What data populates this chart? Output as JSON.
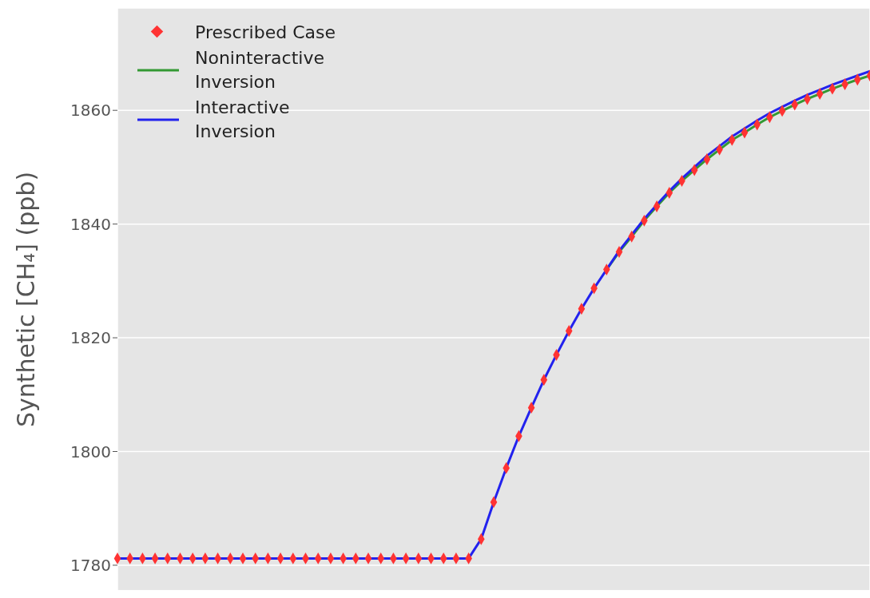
{
  "chart_data": {
    "type": "line",
    "ylabel": "Synthetic [CH₄] (ppb)",
    "categories": [
      null,
      null,
      null,
      null,
      null,
      null,
      null,
      null,
      null,
      null,
      null,
      null,
      null,
      null,
      null,
      null,
      null,
      null,
      null,
      null,
      null,
      null,
      null,
      null,
      null,
      null,
      null,
      null,
      null,
      null,
      null,
      null,
      null,
      null,
      null,
      null,
      null,
      null,
      null,
      null,
      null,
      null,
      null,
      null,
      null,
      null,
      null,
      null,
      null,
      null,
      null,
      null,
      null,
      null,
      null,
      null,
      null,
      null,
      null,
      null,
      null
    ],
    "series": [
      {
        "name": "Prescribed Case",
        "type": "scatter",
        "marker": "diamond",
        "color": "#ff3333",
        "values": [
          1781.2,
          1781.2,
          1781.2,
          1781.2,
          1781.2,
          1781.2,
          1781.2,
          1781.2,
          1781.2,
          1781.2,
          1781.2,
          1781.2,
          1781.2,
          1781.2,
          1781.2,
          1781.2,
          1781.2,
          1781.2,
          1781.2,
          1781.2,
          1781.2,
          1781.2,
          1781.2,
          1781.2,
          1781.2,
          1781.2,
          1781.2,
          1781.2,
          1781.2,
          1784.6,
          1791.1,
          1797.1,
          1802.7,
          1807.7,
          1812.6,
          1817.0,
          1821.2,
          1825.1,
          1828.7,
          1832.0,
          1835.1,
          1837.8,
          1840.6,
          1843.1,
          1845.5,
          1847.6,
          1849.5,
          1851.4,
          1853.1,
          1854.8,
          1856.1,
          1857.5,
          1858.8,
          1859.9,
          1861.0,
          1862.0,
          1862.9,
          1863.8,
          1864.6,
          1865.4,
          1866.1
        ]
      },
      {
        "name": "Noninteractive Inversion",
        "color": "#339933",
        "values": [
          null,
          null,
          null,
          null,
          null,
          null,
          null,
          null,
          null,
          null,
          null,
          null,
          null,
          null,
          null,
          null,
          null,
          null,
          null,
          null,
          null,
          null,
          null,
          null,
          null,
          null,
          null,
          null,
          null,
          null,
          null,
          null,
          null,
          null,
          null,
          null,
          null,
          null,
          null,
          1832.0,
          1835.1,
          1837.8,
          1840.6,
          1843.1,
          1845.5,
          1847.6,
          1849.5,
          1851.4,
          1853.1,
          1854.8,
          1856.1,
          1857.5,
          1858.8,
          1859.9,
          1861.0,
          1862.0,
          1862.9,
          1863.8,
          1864.6,
          1865.4,
          1866.1
        ]
      },
      {
        "name": "Interactive Inversion",
        "color": "#2222ee",
        "values": [
          1781.2,
          1781.2,
          1781.2,
          1781.2,
          1781.2,
          1781.2,
          1781.2,
          1781.2,
          1781.2,
          1781.2,
          1781.2,
          1781.2,
          1781.2,
          1781.2,
          1781.2,
          1781.2,
          1781.2,
          1781.2,
          1781.2,
          1781.2,
          1781.2,
          1781.2,
          1781.2,
          1781.2,
          1781.2,
          1781.2,
          1781.2,
          1781.2,
          1781.2,
          1784.6,
          1791.1,
          1797.1,
          1802.7,
          1807.7,
          1812.6,
          1817.0,
          1821.2,
          1825.1,
          1828.7,
          1832.0,
          1835.3,
          1838.1,
          1840.9,
          1843.4,
          1845.8,
          1848.0,
          1850.0,
          1852.0,
          1853.7,
          1855.4,
          1856.8,
          1858.2,
          1859.5,
          1860.6,
          1861.7,
          1862.7,
          1863.6,
          1864.5,
          1865.3,
          1866.1,
          1866.9
        ]
      }
    ],
    "ylim": [
      1775.5,
      1878
    ],
    "yticks": [
      1780,
      1800,
      1820,
      1840,
      1860
    ],
    "grid": true,
    "legend": "top left",
    "tick_labels": "y",
    "line_style": "solid"
  }
}
